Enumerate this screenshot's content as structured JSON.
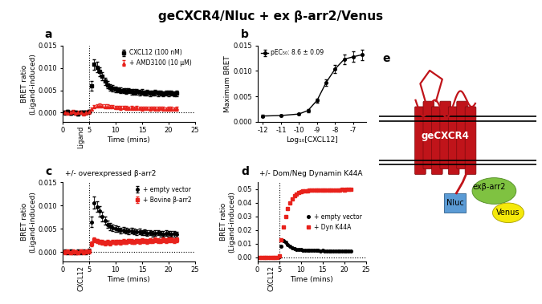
{
  "title": "geCXCR4/Nluc + ex β-arr2/Venus",
  "chart_data": [
    {
      "type": "scatter",
      "label": "a",
      "x_label": "Time (mins)",
      "y_label": "BRET ratio\n(Ligand-induced)",
      "xlim": [
        0,
        25
      ],
      "xticks": [
        0,
        5,
        10,
        15,
        20,
        25
      ],
      "ylim": [
        -0.002,
        0.015
      ],
      "yticks": [
        {
          "value": 0,
          "label": "0.000"
        },
        {
          "value": 0.005,
          "label": "0.005"
        },
        {
          "value": 0.01,
          "label": "0.010"
        },
        {
          "value": 0.015,
          "label": "0.015"
        }
      ],
      "vline": 5,
      "hline": 0,
      "annotation": "Ligand",
      "legend": "upper right",
      "x": [
        0.5,
        1.0,
        1.5,
        2.0,
        2.5,
        3.0,
        3.5,
        4.0,
        4.5,
        5.0,
        5.5,
        6.0,
        6.5,
        7.0,
        7.5,
        8.0,
        8.5,
        9.0,
        9.5,
        10.0,
        10.5,
        11.0,
        11.5,
        12.0,
        12.5,
        13.0,
        13.5,
        14.0,
        14.5,
        15.0,
        15.5,
        16.0,
        16.5,
        17.0,
        17.5,
        18.0,
        18.5,
        19.0,
        19.5,
        20.0,
        20.5,
        21.0,
        21.5
      ],
      "series": [
        {
          "name": "CXCL12 (100 nM)",
          "color": "#000000",
          "marker": "square",
          "line_style": "none",
          "values": [
            0,
            0.0002,
            -0.0001,
            0.0001,
            0,
            -0.0002,
            0.0001,
            0,
            0.0001,
            0.0003,
            0.006,
            0.0108,
            0.0102,
            0.0092,
            0.0081,
            0.007,
            0.0062,
            0.0057,
            0.0054,
            0.0052,
            0.0051,
            0.005,
            0.0049,
            0.0048,
            0.0049,
            0.0047,
            0.0046,
            0.0047,
            0.0045,
            0.0046,
            0.0044,
            0.0045,
            0.0043,
            0.0044,
            0.0045,
            0.0043,
            0.0044,
            0.0042,
            0.0044,
            0.0043,
            0.0044,
            0.0042,
            0.0043
          ],
          "errors": [
            0.0004,
            0.0004,
            0.0004,
            0.0004,
            0.0004,
            0.0004,
            0.0004,
            0.0004,
            0.0004,
            0.0004,
            0.001,
            0.0012,
            0.0011,
            0.001,
            0.0009,
            0.0008,
            0.0008,
            0.0007,
            0.0007,
            0.0006,
            0.0006,
            0.0006,
            0.0006,
            0.0006,
            0.0006,
            0.0006,
            0.0006,
            0.0006,
            0.0006,
            0.0006,
            0.0006,
            0.0006,
            0.0006,
            0.0006,
            0.0006,
            0.0006,
            0.0006,
            0.0006,
            0.0006,
            0.0006,
            0.0006,
            0.0006,
            0.0006
          ]
        },
        {
          "name": "+ AMD3100 (10 µM)",
          "color": "#e8221c",
          "marker": "triangle",
          "line_style": "none",
          "values": [
            0.0001,
            -0.0001,
            0,
            0.0002,
            -0.0001,
            0,
            0.0001,
            -0.0002,
            0,
            0.0002,
            0.0008,
            0.0013,
            0.0015,
            0.0016,
            0.0015,
            0.0014,
            0.0014,
            0.0013,
            0.0013,
            0.0012,
            0.0012,
            0.0011,
            0.0012,
            0.0011,
            0.001,
            0.0011,
            0.001,
            0.0011,
            0.001,
            0.0009,
            0.001,
            0.001,
            0.0009,
            0.001,
            0.0009,
            0.0009,
            0.001,
            0.0009,
            0.0008,
            0.0009,
            0.0009,
            0.0008,
            0.0009
          ],
          "errors": [
            0.0004,
            0.0004,
            0.0004,
            0.0004,
            0.0004,
            0.0004,
            0.0004,
            0.0004,
            0.0004,
            0.0004,
            0.0004,
            0.0004,
            0.0004,
            0.0004,
            0.0004,
            0.0004,
            0.0004,
            0.0004,
            0.0004,
            0.0004,
            0.0004,
            0.0004,
            0.0004,
            0.0004,
            0.0004,
            0.0004,
            0.0004,
            0.0004,
            0.0004,
            0.0004,
            0.0004,
            0.0004,
            0.0004,
            0.0004,
            0.0004,
            0.0004,
            0.0004,
            0.0004,
            0.0004,
            0.0004,
            0.0004,
            0.0004,
            0.0004
          ]
        }
      ]
    },
    {
      "type": "line",
      "label": "b",
      "x_label": "Log₁₀[CXCL12]",
      "y_label": "Maximum BRET",
      "xlim": [
        -12.3,
        -6.3
      ],
      "xticks": [
        -12,
        -11,
        -10,
        -9,
        -8,
        -7
      ],
      "ylim": [
        0,
        0.015
      ],
      "yticks": [
        {
          "value": 0,
          "label": "0.000"
        },
        {
          "value": 0.005,
          "label": "0.005"
        },
        {
          "value": 0.01,
          "label": "0.010"
        },
        {
          "value": 0.015,
          "label": "0.015"
        }
      ],
      "legend": "upper left",
      "x": [
        -12,
        -11,
        -10,
        -9.5,
        -9,
        -8.5,
        -8,
        -7.5,
        -7,
        -6.5
      ],
      "series": [
        {
          "name": "pEC₅₀: 8.6 ± 0.09",
          "color": "#000000",
          "marker": "circle",
          "line_style": "solid",
          "values": [
            0.0011,
            0.0012,
            0.0015,
            0.0022,
            0.0042,
            0.0077,
            0.0104,
            0.0123,
            0.0128,
            0.0132
          ],
          "errors": [
            0.0002,
            0.0002,
            0.0002,
            0.0003,
            0.0004,
            0.0006,
            0.0008,
            0.0009,
            0.001,
            0.001
          ]
        }
      ]
    },
    {
      "type": "scatter",
      "label": "c",
      "subtitle": "+/- overexpressed β-arr2",
      "x_label": "Time (mins)",
      "y_label": "BRET ratio\n(Ligand-induced)",
      "xlim": [
        0,
        25
      ],
      "xticks": [
        0,
        5,
        10,
        15,
        20,
        25
      ],
      "ylim": [
        -0.002,
        0.015
      ],
      "yticks": [
        {
          "value": 0,
          "label": "0.000"
        },
        {
          "value": 0.005,
          "label": "0.005"
        },
        {
          "value": 0.01,
          "label": "0.010"
        },
        {
          "value": 0.015,
          "label": "0.015"
        }
      ],
      "vline": 5,
      "hline": 0,
      "annotation": "CXCL12",
      "legend": "upper right",
      "x": [
        0.5,
        1.0,
        1.5,
        2.0,
        2.5,
        3.0,
        3.5,
        4.0,
        4.5,
        5.0,
        5.5,
        6.0,
        6.5,
        7.0,
        7.5,
        8.0,
        8.5,
        9.0,
        9.5,
        10.0,
        10.5,
        11.0,
        11.5,
        12.0,
        12.5,
        13.0,
        13.5,
        14.0,
        14.5,
        15.0,
        15.5,
        16.0,
        16.5,
        17.0,
        17.5,
        18.0,
        18.5,
        19.0,
        19.5,
        20.0,
        20.5,
        21.0,
        21.5
      ],
      "series": [
        {
          "name": "+ empty vector",
          "color": "#000000",
          "marker": "circle",
          "line_style": "none",
          "values": [
            0.0001,
            -0.0001,
            0.0002,
            0,
            -0.0001,
            0.0001,
            0,
            0.0002,
            0,
            0.0004,
            0.0065,
            0.0106,
            0.0098,
            0.0088,
            0.0077,
            0.0068,
            0.006,
            0.0055,
            0.0052,
            0.005,
            0.0049,
            0.0047,
            0.0048,
            0.0046,
            0.0045,
            0.0046,
            0.0044,
            0.0043,
            0.0044,
            0.0042,
            0.0043,
            0.0041,
            0.0042,
            0.004,
            0.0041,
            0.0042,
            0.004,
            0.0039,
            0.0041,
            0.004,
            0.0039,
            0.004,
            0.0038
          ],
          "errors": [
            0.0004,
            0.0004,
            0.0004,
            0.0004,
            0.0004,
            0.0004,
            0.0004,
            0.0004,
            0.0004,
            0.0004,
            0.0011,
            0.0013,
            0.0012,
            0.0011,
            0.001,
            0.0009,
            0.0008,
            0.0008,
            0.0007,
            0.0007,
            0.0006,
            0.0006,
            0.0006,
            0.0006,
            0.0006,
            0.0006,
            0.0006,
            0.0006,
            0.0006,
            0.0006,
            0.0006,
            0.0006,
            0.0006,
            0.0006,
            0.0006,
            0.0006,
            0.0006,
            0.0006,
            0.0006,
            0.0006,
            0.0006,
            0.0006,
            0.0006
          ]
        },
        {
          "name": "+ Bovine β-arr2",
          "color": "#e8221c",
          "marker": "square",
          "line_style": "none",
          "values": [
            0,
            0.0001,
            -0.0001,
            0.0001,
            0,
            -0.0001,
            0.0002,
            0,
            0.0001,
            0.0002,
            0.0018,
            0.0026,
            0.0024,
            0.0022,
            0.0021,
            0.002,
            0.0021,
            0.002,
            0.0022,
            0.0021,
            0.0022,
            0.0021,
            0.0023,
            0.0022,
            0.0024,
            0.0023,
            0.0022,
            0.0024,
            0.0023,
            0.0025,
            0.0024,
            0.0023,
            0.0025,
            0.0024,
            0.0026,
            0.0025,
            0.0024,
            0.0026,
            0.0025,
            0.0027,
            0.0026,
            0.0025,
            0.0027
          ],
          "errors": [
            0.0004,
            0.0004,
            0.0004,
            0.0004,
            0.0004,
            0.0004,
            0.0004,
            0.0004,
            0.0004,
            0.0004,
            0.0005,
            0.0005,
            0.0005,
            0.0005,
            0.0005,
            0.0005,
            0.0005,
            0.0005,
            0.0005,
            0.0005,
            0.0005,
            0.0005,
            0.0005,
            0.0005,
            0.0005,
            0.0005,
            0.0005,
            0.0005,
            0.0005,
            0.0005,
            0.0005,
            0.0005,
            0.0005,
            0.0005,
            0.0005,
            0.0005,
            0.0005,
            0.0005,
            0.0005,
            0.0005,
            0.0005,
            0.0005,
            0.0005
          ]
        }
      ]
    },
    {
      "type": "scatter",
      "label": "d",
      "subtitle": "+/- Dom/Neg Dynamin K44A",
      "x_label": "Time (mins)",
      "y_label": "BRET ratio\n(Ligand-induced)",
      "xlim": [
        0,
        25
      ],
      "xticks": [
        0,
        5,
        10,
        15,
        20,
        25
      ],
      "ylim": [
        -0.003,
        0.055
      ],
      "yticks": [
        {
          "value": 0,
          "label": "0.00"
        },
        {
          "value": 0.01,
          "label": "0.01"
        },
        {
          "value": 0.02,
          "label": "0.02"
        },
        {
          "value": 0.03,
          "label": "0.03"
        },
        {
          "value": 0.04,
          "label": "0.04"
        },
        {
          "value": 0.05,
          "label": "0.05"
        }
      ],
      "vline": 5,
      "hline": 0,
      "annotation": "CXCL12",
      "legend": "center right",
      "x": [
        0.5,
        1.0,
        1.5,
        2.0,
        2.5,
        3.0,
        3.5,
        4.0,
        4.5,
        5.0,
        5.5,
        6.0,
        6.5,
        7.0,
        7.5,
        8.0,
        8.5,
        9.0,
        9.5,
        10.0,
        10.5,
        11.0,
        11.5,
        12.0,
        12.5,
        13.0,
        13.5,
        14.0,
        14.5,
        15.0,
        15.5,
        16.0,
        16.5,
        17.0,
        17.5,
        18.0,
        18.5,
        19.0,
        19.5,
        20.0,
        20.5,
        21.0,
        21.5
      ],
      "series": [
        {
          "name": "+ empty vector",
          "color": "#000000",
          "marker": "circle",
          "line_style": "none",
          "values": [
            0,
            0.0001,
            0,
            -0.0001,
            0,
            0.0001,
            0,
            0,
            0.0001,
            0.0005,
            0.008,
            0.012,
            0.011,
            0.0095,
            0.0082,
            0.0072,
            0.0065,
            0.006,
            0.0057,
            0.0055,
            0.0054,
            0.0053,
            0.0052,
            0.0051,
            0.0052,
            0.005,
            0.0051,
            0.005,
            0.0049,
            0.005,
            0.0049,
            0.0048,
            0.0049,
            0.0048,
            0.0049,
            0.0047,
            0.0048,
            0.0047,
            0.0048,
            0.0047,
            0.0046,
            0.0047,
            0.0046
          ]
        },
        {
          "name": "+ Dyn K44A",
          "color": "#e8221c",
          "marker": "square",
          "line_style": "none",
          "values": [
            0,
            0,
            0.0001,
            0,
            -0.0001,
            0,
            0.0001,
            0,
            0,
            0.001,
            0.013,
            0.022,
            0.03,
            0.036,
            0.04,
            0.043,
            0.045,
            0.0465,
            0.0475,
            0.048,
            0.0485,
            0.0488,
            0.049,
            0.0491,
            0.0492,
            0.0493,
            0.0493,
            0.0494,
            0.0494,
            0.0495,
            0.0495,
            0.0495,
            0.0495,
            0.0496,
            0.0496,
            0.0496,
            0.0496,
            0.0496,
            0.0497,
            0.0496,
            0.0497,
            0.0497,
            0.0497
          ]
        }
      ]
    }
  ],
  "diagram": {
    "label": "e",
    "receptor": "geCXCR4",
    "donor": "Nluc",
    "acceptor_protein": "exβ-arr2",
    "acceptor_tag": "Venus"
  }
}
